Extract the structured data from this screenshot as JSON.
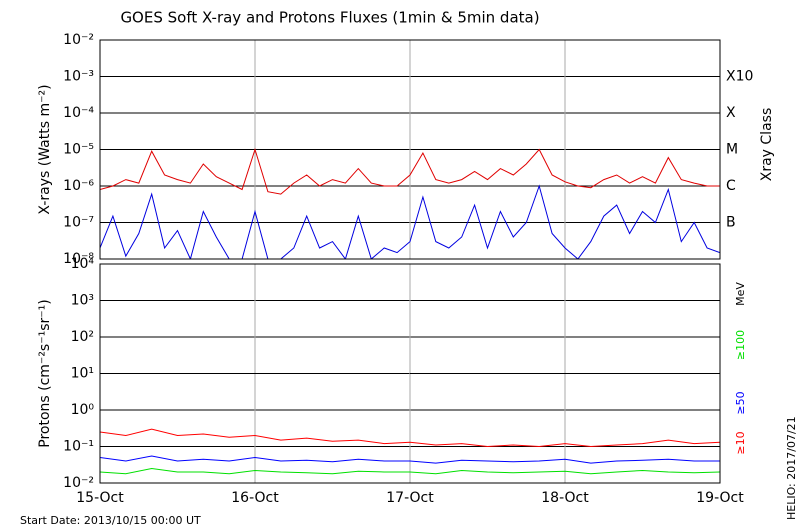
{
  "chart_data": [
    {
      "type": "line",
      "title": "GOES Soft X-ray and Protons Fluxes   (1min & 5min data)",
      "ylabel": "X-rays (Watts m⁻²)",
      "y2label": "Xray Class",
      "log_y": true,
      "x": [
        0,
        2,
        4,
        6,
        8,
        10,
        12,
        14,
        16,
        18,
        20,
        22,
        24,
        26,
        28,
        30,
        32,
        34,
        36,
        38,
        40,
        42,
        44,
        46,
        48,
        50,
        52,
        54,
        56,
        58,
        60,
        62,
        64,
        66,
        68,
        70,
        72,
        74,
        76,
        78,
        80,
        82,
        84,
        86,
        88,
        90,
        92,
        94,
        96
      ],
      "xlim": [
        0,
        96
      ],
      "xticks": [
        0,
        24,
        48,
        72,
        96
      ],
      "ylim": [
        1e-08,
        0.01
      ],
      "yticks": [
        {
          "value": 0.01,
          "label": "10⁻²"
        },
        {
          "value": 0.001,
          "label": "10⁻³"
        },
        {
          "value": 0.0001,
          "label": "10⁻⁴"
        },
        {
          "value": 1e-05,
          "label": "10⁻⁵"
        },
        {
          "value": 1e-06,
          "label": "10⁻⁶"
        },
        {
          "value": 1e-07,
          "label": "10⁻⁷"
        },
        {
          "value": 1e-08,
          "label": "10⁻⁸"
        }
      ],
      "y2lim": [
        1e-08,
        0.01
      ],
      "y2ticks": [
        {
          "value": 0.001,
          "label": "X10"
        },
        {
          "value": 0.0001,
          "label": "X"
        },
        {
          "value": 1e-05,
          "label": "M"
        },
        {
          "value": 1e-06,
          "label": "C"
        },
        {
          "value": 1e-07,
          "label": "B"
        }
      ],
      "grid": true,
      "series": [
        {
          "color": "#e00000",
          "values": [
            8e-07,
            1e-06,
            1.5e-06,
            1.2e-06,
            9e-06,
            2e-06,
            1.5e-06,
            1.2e-06,
            4e-06,
            1.8e-06,
            1.2e-06,
            8e-07,
            1e-05,
            7e-07,
            6e-07,
            1.2e-06,
            2e-06,
            1e-06,
            1.5e-06,
            1.2e-06,
            3e-06,
            1.2e-06,
            1e-06,
            1e-06,
            2e-06,
            8e-06,
            1.5e-06,
            1.2e-06,
            1.5e-06,
            2.5e-06,
            1.5e-06,
            3e-06,
            2e-06,
            4e-06,
            1e-05,
            2e-06,
            1.3e-06,
            1e-06,
            9e-07,
            1.5e-06,
            2e-06,
            1.2e-06,
            1.8e-06,
            1.2e-06,
            6e-06,
            1.5e-06,
            1.2e-06,
            1e-06,
            1e-06
          ]
        },
        {
          "color": "#0000e0",
          "values": [
            2e-08,
            1.5e-07,
            1.2e-08,
            5e-08,
            6e-07,
            2e-08,
            6e-08,
            1e-08,
            2e-07,
            4e-08,
            1e-08,
            1e-08,
            2e-07,
            1e-08,
            1e-08,
            2e-08,
            1.5e-07,
            2e-08,
            3e-08,
            1e-08,
            1.5e-07,
            1e-08,
            2e-08,
            1.5e-08,
            3e-08,
            5e-07,
            3e-08,
            2e-08,
            4e-08,
            3e-07,
            2e-08,
            2e-07,
            4e-08,
            1e-07,
            1e-06,
            5e-08,
            2e-08,
            1e-08,
            3e-08,
            1.5e-07,
            3e-07,
            5e-08,
            2e-07,
            1e-07,
            8e-07,
            3e-08,
            1e-07,
            2e-08,
            1.5e-08
          ]
        }
      ]
    },
    {
      "type": "line",
      "ylabel": "Protons (cm⁻²s⁻¹sr⁻¹)",
      "log_y": true,
      "legend_title": "MeV",
      "x": [
        0,
        4,
        8,
        12,
        16,
        20,
        24,
        28,
        32,
        36,
        40,
        44,
        48,
        52,
        56,
        60,
        64,
        68,
        72,
        76,
        80,
        84,
        88,
        92,
        96
      ],
      "xlim": [
        0,
        96
      ],
      "xticks": [
        {
          "value": 0,
          "label": "15-Oct"
        },
        {
          "value": 24,
          "label": "16-Oct"
        },
        {
          "value": 48,
          "label": "17-Oct"
        },
        {
          "value": 72,
          "label": "18-Oct"
        },
        {
          "value": 96,
          "label": "19-Oct"
        }
      ],
      "ylim": [
        0.01,
        10000.0
      ],
      "yticks": [
        {
          "value": 10000.0,
          "label": "10⁴"
        },
        {
          "value": 1000.0,
          "label": "10³"
        },
        {
          "value": 100.0,
          "label": "10²"
        },
        {
          "value": 10,
          "label": "10¹"
        },
        {
          "value": 1,
          "label": "10⁰"
        },
        {
          "value": 0.1,
          "label": "10⁻¹"
        },
        {
          "value": 0.01,
          "label": "10⁻²"
        }
      ],
      "threshold": 10,
      "grid": true,
      "series": [
        {
          "name": "≥10",
          "color": "#ff0000",
          "values": [
            0.25,
            0.2,
            0.3,
            0.2,
            0.22,
            0.18,
            0.2,
            0.15,
            0.17,
            0.14,
            0.15,
            0.12,
            0.13,
            0.11,
            0.12,
            0.1,
            0.11,
            0.1,
            0.12,
            0.1,
            0.11,
            0.12,
            0.15,
            0.12,
            0.13
          ]
        },
        {
          "name": "≥50",
          "color": "#0000ff",
          "values": [
            0.05,
            0.04,
            0.055,
            0.04,
            0.045,
            0.04,
            0.05,
            0.04,
            0.042,
            0.038,
            0.045,
            0.04,
            0.04,
            0.035,
            0.042,
            0.04,
            0.038,
            0.04,
            0.045,
            0.035,
            0.04,
            0.042,
            0.045,
            0.04,
            0.04
          ]
        },
        {
          "name": "≥100",
          "color": "#00e000",
          "values": [
            0.02,
            0.018,
            0.025,
            0.02,
            0.02,
            0.018,
            0.022,
            0.02,
            0.019,
            0.018,
            0.021,
            0.02,
            0.02,
            0.018,
            0.022,
            0.02,
            0.019,
            0.02,
            0.021,
            0.018,
            0.02,
            0.022,
            0.02,
            0.019,
            0.02
          ]
        }
      ]
    }
  ],
  "footer": {
    "start_date": "Start Date: 2013/10/15 00:00 UT",
    "credit": "HELIO: 2017/07/21"
  }
}
